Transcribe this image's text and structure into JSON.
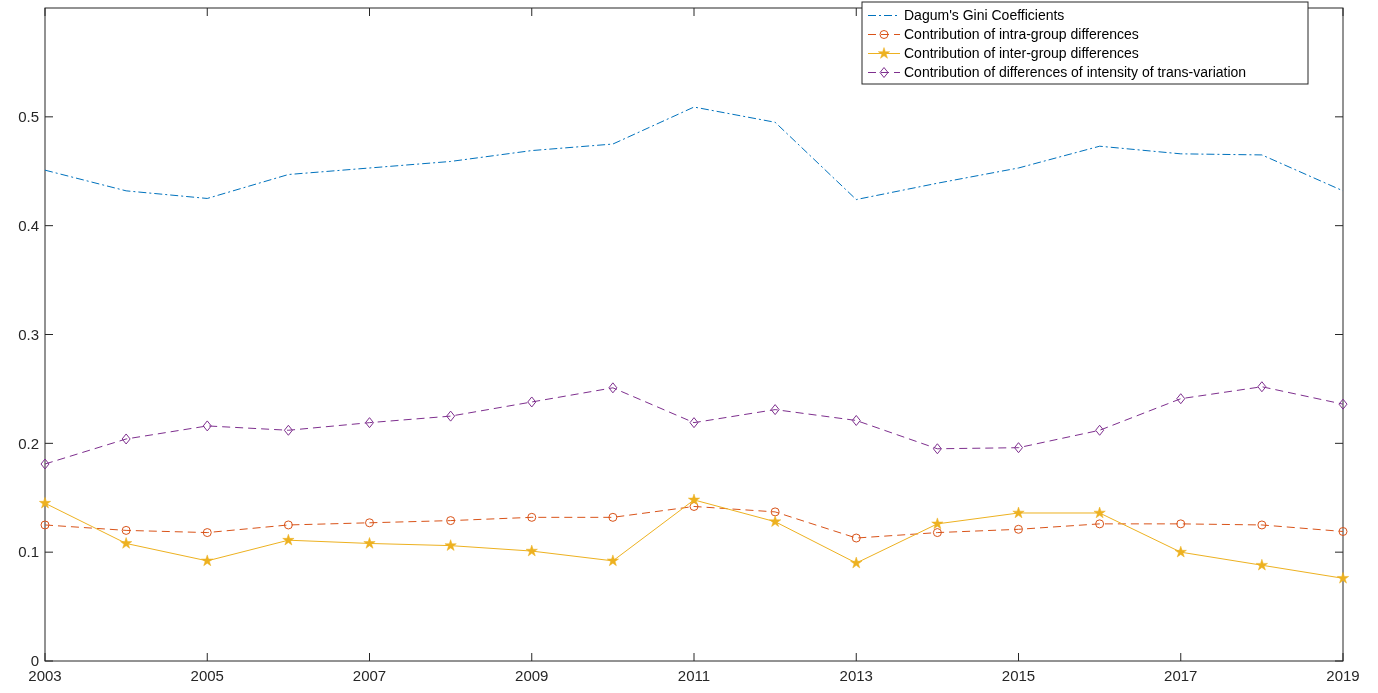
{
  "chart_data": {
    "type": "line",
    "x": [
      2003,
      2004,
      2005,
      2006,
      2007,
      2008,
      2009,
      2010,
      2011,
      2012,
      2013,
      2014,
      2015,
      2016,
      2017,
      2018,
      2019
    ],
    "series": [
      {
        "name": "Dagum's Gini Coefficients",
        "color": "#0072bd",
        "line_style": "dashdot",
        "marker": "none",
        "values": [
          0.451,
          0.432,
          0.425,
          0.447,
          0.453,
          0.459,
          0.469,
          0.475,
          0.509,
          0.495,
          0.424,
          0.439,
          0.453,
          0.473,
          0.466,
          0.465,
          0.432
        ]
      },
      {
        "name": "Contribution of intra-group differences",
        "color": "#d95319",
        "line_style": "dashed",
        "marker": "circle",
        "values": [
          0.125,
          0.12,
          0.118,
          0.125,
          0.127,
          0.129,
          0.132,
          0.132,
          0.142,
          0.137,
          0.113,
          0.118,
          0.121,
          0.126,
          0.126,
          0.125,
          0.119
        ]
      },
      {
        "name": "Contribution of inter-group differences",
        "color": "#edb120",
        "line_style": "solid",
        "marker": "star",
        "values": [
          0.145,
          0.108,
          0.092,
          0.111,
          0.108,
          0.106,
          0.101,
          0.092,
          0.148,
          0.128,
          0.09,
          0.126,
          0.136,
          0.136,
          0.1,
          0.088,
          0.076
        ]
      },
      {
        "name": "Contribution of differences of intensity of trans-variation",
        "color": "#7e2f8e",
        "line_style": "dashed",
        "marker": "diamond",
        "values": [
          0.181,
          0.204,
          0.216,
          0.212,
          0.219,
          0.225,
          0.238,
          0.251,
          0.219,
          0.231,
          0.221,
          0.195,
          0.196,
          0.212,
          0.241,
          0.252,
          0.236
        ]
      }
    ],
    "xlim": [
      2003,
      2019
    ],
    "xticks": [
      2003,
      2005,
      2007,
      2009,
      2011,
      2013,
      2015,
      2017,
      2019
    ],
    "ylim": [
      0,
      0.6
    ],
    "yticks": [
      0,
      0.1,
      0.2,
      0.3,
      0.4,
      0.5
    ],
    "legend": "top right",
    "grid": false
  }
}
